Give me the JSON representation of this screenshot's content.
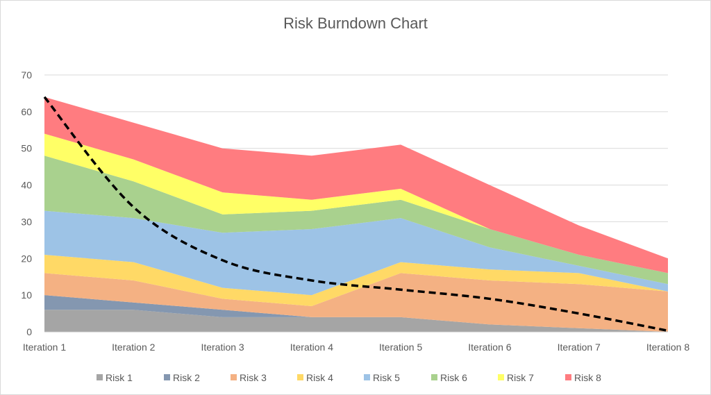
{
  "chart_data": {
    "type": "area",
    "stacked": true,
    "title": "Risk Burndown Chart",
    "xlabel": "",
    "ylabel": "",
    "categories": [
      "Iteration 1",
      "Iteration 2",
      "Iteration 3",
      "Iteration 4",
      "Iteration 5",
      "Iteration 6",
      "Iteration 7",
      "Iteration 8"
    ],
    "ylim": [
      0,
      70
    ],
    "yticks": [
      "0",
      "10",
      "20",
      "30",
      "40",
      "50",
      "60",
      "70"
    ],
    "grid": true,
    "legend_position": "bottom",
    "series": [
      {
        "name": "Risk 1",
        "color": "#a5a5a5",
        "values": [
          6,
          6,
          4,
          4,
          4,
          2,
          1,
          0
        ]
      },
      {
        "name": "Risk 2",
        "color": "#8497b0",
        "values": [
          4,
          2,
          2,
          0,
          0,
          0,
          0,
          0
        ]
      },
      {
        "name": "Risk 3",
        "color": "#f4b183",
        "values": [
          6,
          6,
          3,
          3,
          12,
          12,
          12,
          11
        ]
      },
      {
        "name": "Risk 4",
        "color": "#ffd966",
        "values": [
          5,
          5,
          3,
          3,
          3,
          3,
          3,
          0
        ]
      },
      {
        "name": "Risk 5",
        "color": "#9dc3e6",
        "values": [
          12,
          12,
          15,
          18,
          12,
          6,
          2,
          2
        ]
      },
      {
        "name": "Risk 6",
        "color": "#a9d18e",
        "values": [
          15,
          10,
          5,
          5,
          5,
          5,
          3,
          3
        ]
      },
      {
        "name": "Risk 7",
        "color": "#ffff66",
        "values": [
          6,
          6,
          6,
          3,
          3,
          0,
          0,
          0
        ]
      },
      {
        "name": "Risk 8",
        "color": "#ff7c80",
        "values": [
          10,
          10,
          12,
          12,
          12,
          12,
          8,
          4
        ]
      }
    ],
    "trendline": {
      "style": "dashed",
      "color": "#000000",
      "values": [
        64,
        34,
        19.5,
        14,
        11.5,
        9,
        5,
        0.3
      ]
    }
  }
}
